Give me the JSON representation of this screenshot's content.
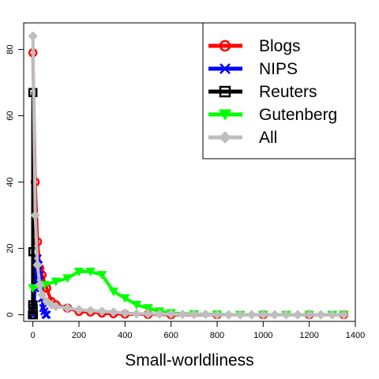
{
  "chart_data": {
    "type": "line",
    "title": "",
    "xlabel": "Small-worldliness",
    "ylabel": "",
    "xlim": [
      -40,
      1400
    ],
    "ylim": [
      -2,
      88
    ],
    "xticks": [
      0,
      200,
      400,
      600,
      800,
      1000,
      1200,
      1400
    ],
    "yticks": [
      0,
      20,
      40,
      60,
      80
    ],
    "legend_position": "top-right",
    "series": [
      {
        "name": "Blogs",
        "color": "#ff0000",
        "marker": "circle",
        "points": [
          [
            0,
            79
          ],
          [
            10,
            40
          ],
          [
            20,
            22
          ],
          [
            30,
            14
          ],
          [
            40,
            12
          ],
          [
            60,
            8
          ],
          [
            80,
            4
          ],
          [
            100,
            3
          ],
          [
            150,
            2
          ],
          [
            200,
            1
          ],
          [
            250,
            0.8
          ],
          [
            300,
            0.5
          ],
          [
            350,
            0.3
          ],
          [
            400,
            0.2
          ],
          [
            500,
            0.1
          ],
          [
            600,
            0
          ],
          [
            800,
            0
          ],
          [
            1000,
            0
          ],
          [
            1200,
            0
          ],
          [
            1350,
            0
          ]
        ]
      },
      {
        "name": "NIPS",
        "color": "#0000ff",
        "marker": "x",
        "points": [
          [
            0,
            0
          ],
          [
            5,
            3
          ],
          [
            10,
            8
          ],
          [
            15,
            14
          ],
          [
            20,
            17
          ],
          [
            25,
            15
          ],
          [
            30,
            12
          ],
          [
            35,
            9
          ],
          [
            40,
            5
          ],
          [
            45,
            2
          ],
          [
            50,
            1
          ],
          [
            55,
            0
          ],
          [
            60,
            0
          ]
        ]
      },
      {
        "name": "Reuters",
        "color": "#000000",
        "marker": "square",
        "points": [
          [
            -2,
            0
          ],
          [
            -1,
            3
          ],
          [
            0,
            67
          ],
          [
            0,
            19
          ],
          [
            1,
            2
          ],
          [
            2,
            0
          ]
        ]
      },
      {
        "name": "Gutenberg",
        "color": "#00ff00",
        "marker": "triangle-down",
        "points": [
          [
            0,
            8
          ],
          [
            50,
            9
          ],
          [
            100,
            10
          ],
          [
            150,
            11
          ],
          [
            200,
            13
          ],
          [
            250,
            13
          ],
          [
            300,
            12
          ],
          [
            350,
            7
          ],
          [
            400,
            5
          ],
          [
            450,
            3
          ],
          [
            500,
            2
          ],
          [
            550,
            1
          ],
          [
            600,
            0.5
          ],
          [
            700,
            0.2
          ],
          [
            800,
            0.1
          ],
          [
            900,
            0
          ],
          [
            1000,
            0
          ],
          [
            1100,
            0
          ],
          [
            1200,
            0
          ],
          [
            1300,
            0
          ],
          [
            1350,
            0
          ]
        ]
      },
      {
        "name": "All",
        "color": "#bebebe",
        "marker": "diamond",
        "points": [
          [
            0,
            84
          ],
          [
            10,
            30
          ],
          [
            20,
            15
          ],
          [
            30,
            9
          ],
          [
            40,
            6
          ],
          [
            60,
            4
          ],
          [
            80,
            3
          ],
          [
            100,
            2.5
          ],
          [
            150,
            2
          ],
          [
            200,
            1.5
          ],
          [
            250,
            1.2
          ],
          [
            300,
            1
          ],
          [
            350,
            0.8
          ],
          [
            400,
            0.5
          ],
          [
            450,
            0.3
          ],
          [
            500,
            0.3
          ],
          [
            550,
            0.2
          ],
          [
            600,
            0.2
          ],
          [
            650,
            0.1
          ],
          [
            700,
            0.1
          ],
          [
            750,
            0.1
          ],
          [
            800,
            0
          ],
          [
            850,
            0
          ],
          [
            900,
            0
          ],
          [
            950,
            0
          ],
          [
            1000,
            0
          ],
          [
            1050,
            0
          ],
          [
            1100,
            0
          ],
          [
            1150,
            0
          ],
          [
            1200,
            0
          ],
          [
            1250,
            0
          ],
          [
            1300,
            0
          ],
          [
            1350,
            0
          ]
        ]
      }
    ]
  }
}
